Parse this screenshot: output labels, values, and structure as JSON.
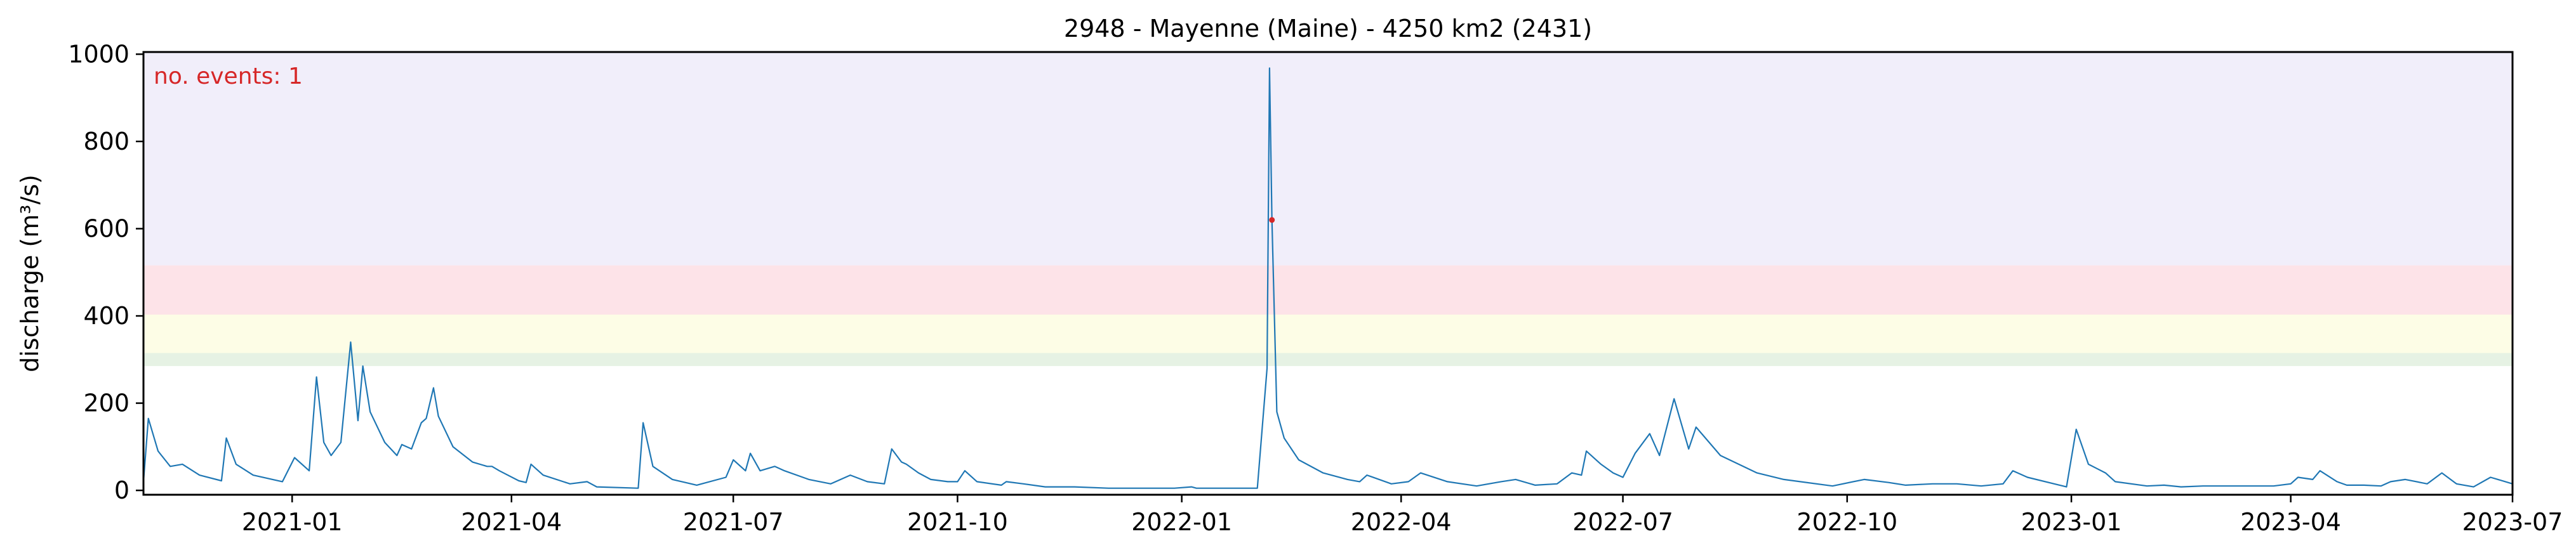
{
  "chart_data": {
    "type": "line",
    "title": "2948 - Mayenne (Maine) - 4250 km2 (2431)",
    "xlabel": "",
    "ylabel": "discharge (m³/s)",
    "x_axis": "date",
    "xlim": [
      "2020-11-01",
      "2023-07-01"
    ],
    "ylim": [
      -10,
      1005
    ],
    "yticks": [
      0,
      200,
      400,
      600,
      800,
      1000
    ],
    "xticks": [
      {
        "date": "2021-01-01",
        "label": "2021-01"
      },
      {
        "date": "2021-04-01",
        "label": "2021-04"
      },
      {
        "date": "2021-07-01",
        "label": "2021-07"
      },
      {
        "date": "2021-10-01",
        "label": "2021-10"
      },
      {
        "date": "2022-01-01",
        "label": "2022-01"
      },
      {
        "date": "2022-04-01",
        "label": "2022-04"
      },
      {
        "date": "2022-07-01",
        "label": "2022-07"
      },
      {
        "date": "2022-10-01",
        "label": "2022-10"
      },
      {
        "date": "2023-01-01",
        "label": "2023-01"
      },
      {
        "date": "2023-04-01",
        "label": "2023-04"
      },
      {
        "date": "2023-07-01",
        "label": "2023-07"
      }
    ],
    "annotation": "no. events: 1",
    "threshold_bands": [
      {
        "from": 285,
        "to": 315,
        "color": "#e6f2e4"
      },
      {
        "from": 315,
        "to": 403,
        "color": "#fdfde6"
      },
      {
        "from": 403,
        "to": 516,
        "color": "#fde3e8"
      },
      {
        "from": 516,
        "to": 1005,
        "color": "#f1eefa"
      }
    ],
    "series": [
      {
        "color": "#1f77b4",
        "points": [
          [
            "2020-11-01",
            20
          ],
          [
            "2020-11-03",
            165
          ],
          [
            "2020-11-07",
            90
          ],
          [
            "2020-11-12",
            55
          ],
          [
            "2020-11-17",
            60
          ],
          [
            "2020-11-24",
            35
          ],
          [
            "2020-12-03",
            22
          ],
          [
            "2020-12-05",
            120
          ],
          [
            "2020-12-09",
            60
          ],
          [
            "2020-12-16",
            35
          ],
          [
            "2020-12-28",
            20
          ],
          [
            "2021-01-02",
            75
          ],
          [
            "2021-01-08",
            45
          ],
          [
            "2021-01-11",
            260
          ],
          [
            "2021-01-14",
            110
          ],
          [
            "2021-01-17",
            80
          ],
          [
            "2021-01-21",
            110
          ],
          [
            "2021-01-25",
            340
          ],
          [
            "2021-01-28",
            160
          ],
          [
            "2021-01-30",
            285
          ],
          [
            "2021-02-02",
            180
          ],
          [
            "2021-02-08",
            110
          ],
          [
            "2021-02-13",
            80
          ],
          [
            "2021-02-15",
            105
          ],
          [
            "2021-02-19",
            95
          ],
          [
            "2021-02-23",
            155
          ],
          [
            "2021-02-25",
            165
          ],
          [
            "2021-02-28",
            235
          ],
          [
            "2021-03-02",
            170
          ],
          [
            "2021-03-08",
            100
          ],
          [
            "2021-03-16",
            65
          ],
          [
            "2021-03-22",
            55
          ],
          [
            "2021-03-24",
            55
          ],
          [
            "2021-03-27",
            45
          ],
          [
            "2021-04-04",
            22
          ],
          [
            "2021-04-07",
            18
          ],
          [
            "2021-04-09",
            60
          ],
          [
            "2021-04-14",
            35
          ],
          [
            "2021-04-25",
            15
          ],
          [
            "2021-05-02",
            20
          ],
          [
            "2021-05-06",
            8
          ],
          [
            "2021-05-23",
            5
          ],
          [
            "2021-05-25",
            155
          ],
          [
            "2021-05-29",
            55
          ],
          [
            "2021-06-06",
            25
          ],
          [
            "2021-06-16",
            12
          ],
          [
            "2021-06-28",
            30
          ],
          [
            "2021-07-01",
            70
          ],
          [
            "2021-07-06",
            45
          ],
          [
            "2021-07-08",
            85
          ],
          [
            "2021-07-12",
            45
          ],
          [
            "2021-07-18",
            55
          ],
          [
            "2021-07-22",
            45
          ],
          [
            "2021-08-01",
            25
          ],
          [
            "2021-08-10",
            15
          ],
          [
            "2021-08-18",
            35
          ],
          [
            "2021-08-25",
            20
          ],
          [
            "2021-09-01",
            15
          ],
          [
            "2021-09-04",
            95
          ],
          [
            "2021-09-08",
            65
          ],
          [
            "2021-09-10",
            60
          ],
          [
            "2021-09-15",
            40
          ],
          [
            "2021-09-20",
            25
          ],
          [
            "2021-09-27",
            20
          ],
          [
            "2021-10-01",
            20
          ],
          [
            "2021-10-04",
            45
          ],
          [
            "2021-10-09",
            20
          ],
          [
            "2021-10-19",
            12
          ],
          [
            "2021-10-21",
            20
          ],
          [
            "2021-10-28",
            15
          ],
          [
            "2021-11-06",
            8
          ],
          [
            "2021-11-18",
            8
          ],
          [
            "2021-12-02",
            5
          ],
          [
            "2021-12-16",
            5
          ],
          [
            "2021-12-29",
            5
          ],
          [
            "2022-01-05",
            8
          ],
          [
            "2022-01-07",
            5
          ],
          [
            "2022-01-24",
            5
          ],
          [
            "2022-02-01",
            5
          ],
          [
            "2022-02-05",
            280
          ],
          [
            "2022-02-06",
            968
          ],
          [
            "2022-02-07",
            620
          ],
          [
            "2022-02-09",
            180
          ],
          [
            "2022-02-12",
            120
          ],
          [
            "2022-02-18",
            70
          ],
          [
            "2022-02-28",
            40
          ],
          [
            "2022-03-10",
            25
          ],
          [
            "2022-03-15",
            20
          ],
          [
            "2022-03-18",
            35
          ],
          [
            "2022-03-28",
            15
          ],
          [
            "2022-04-04",
            20
          ],
          [
            "2022-04-09",
            40
          ],
          [
            "2022-04-20",
            20
          ],
          [
            "2022-05-02",
            10
          ],
          [
            "2022-05-12",
            20
          ],
          [
            "2022-05-18",
            25
          ],
          [
            "2022-05-26",
            12
          ],
          [
            "2022-06-04",
            15
          ],
          [
            "2022-06-10",
            40
          ],
          [
            "2022-06-14",
            35
          ],
          [
            "2022-06-16",
            90
          ],
          [
            "2022-06-22",
            60
          ],
          [
            "2022-06-27",
            40
          ],
          [
            "2022-07-01",
            30
          ],
          [
            "2022-07-06",
            85
          ],
          [
            "2022-07-12",
            130
          ],
          [
            "2022-07-16",
            80
          ],
          [
            "2022-07-22",
            210
          ],
          [
            "2022-07-28",
            95
          ],
          [
            "2022-07-31",
            145
          ],
          [
            "2022-08-10",
            80
          ],
          [
            "2022-08-25",
            40
          ],
          [
            "2022-09-05",
            25
          ],
          [
            "2022-09-25",
            10
          ],
          [
            "2022-10-08",
            25
          ],
          [
            "2022-10-18",
            18
          ],
          [
            "2022-10-25",
            12
          ],
          [
            "2022-11-05",
            15
          ],
          [
            "2022-11-15",
            15
          ],
          [
            "2022-11-25",
            10
          ],
          [
            "2022-12-04",
            15
          ],
          [
            "2022-12-08",
            45
          ],
          [
            "2022-12-14",
            30
          ],
          [
            "2022-12-30",
            8
          ],
          [
            "2023-01-03",
            140
          ],
          [
            "2023-01-08",
            60
          ],
          [
            "2023-01-15",
            40
          ],
          [
            "2023-01-19",
            20
          ],
          [
            "2023-02-01",
            10
          ],
          [
            "2023-02-08",
            12
          ],
          [
            "2023-02-15",
            8
          ],
          [
            "2023-02-24",
            10
          ],
          [
            "2023-03-01",
            10
          ],
          [
            "2023-03-15",
            10
          ],
          [
            "2023-03-25",
            10
          ],
          [
            "2023-04-01",
            15
          ],
          [
            "2023-04-04",
            30
          ],
          [
            "2023-04-10",
            25
          ],
          [
            "2023-04-13",
            45
          ],
          [
            "2023-04-20",
            20
          ],
          [
            "2023-04-24",
            12
          ],
          [
            "2023-05-01",
            12
          ],
          [
            "2023-05-08",
            10
          ],
          [
            "2023-05-12",
            20
          ],
          [
            "2023-05-18",
            25
          ],
          [
            "2023-05-27",
            15
          ],
          [
            "2023-06-02",
            40
          ],
          [
            "2023-06-08",
            15
          ],
          [
            "2023-06-15",
            8
          ],
          [
            "2023-06-22",
            30
          ],
          [
            "2023-06-25",
            25
          ],
          [
            "2023-07-01",
            15
          ]
        ]
      }
    ],
    "events": [
      {
        "date": "2022-02-07",
        "value": 620,
        "color": "#d62728"
      }
    ]
  }
}
